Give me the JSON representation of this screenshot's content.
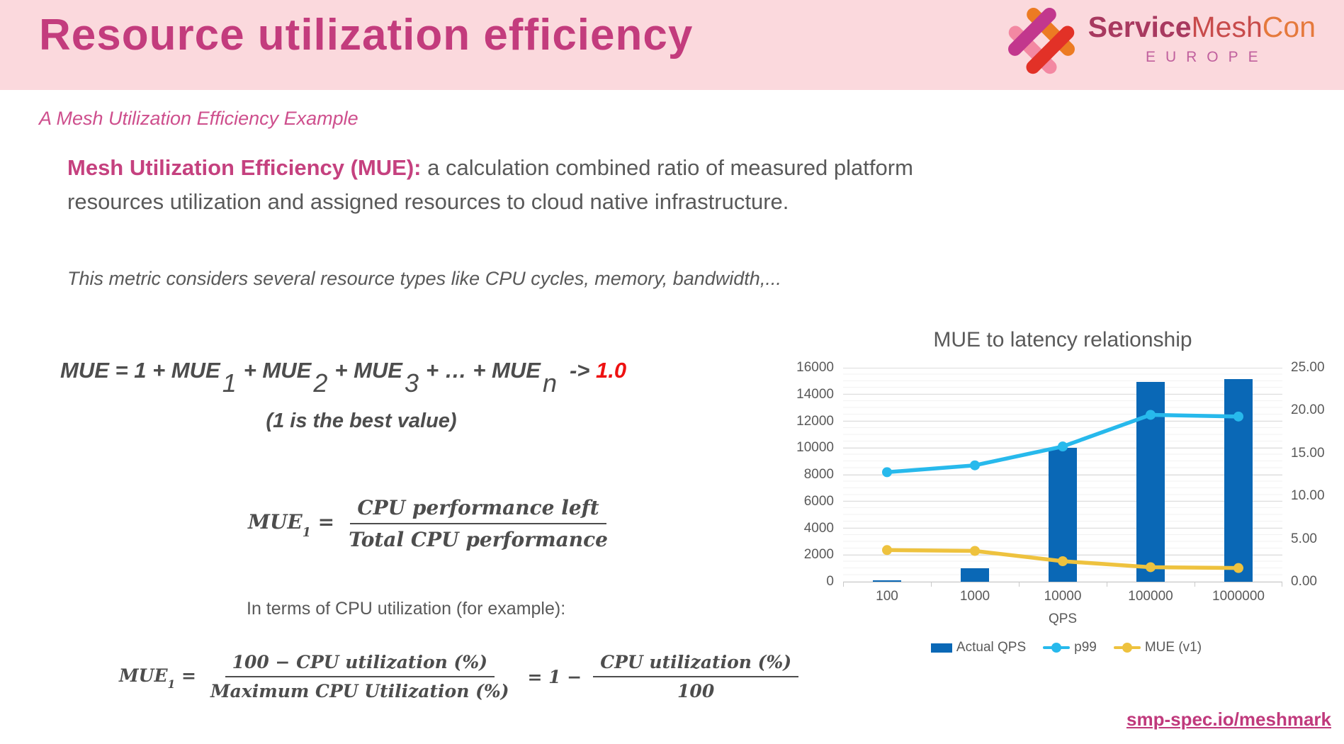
{
  "theme": {
    "header_bg": "#FBD9DD",
    "title_color": "#C33C7D",
    "accent_pink": "#CE4F8D",
    "body_gray": "#595959",
    "red_highlight": "#EE1111",
    "link_color": "#C0397C"
  },
  "header": {
    "title": "Resource utilization efficiency",
    "logo": {
      "brand_service": "Service",
      "brand_mesh": "Mesh",
      "brand_con": "Con",
      "region": "EUROPE"
    }
  },
  "subtitle": "A Mesh Utilization Efficiency Example",
  "intro": {
    "lead": "Mesh Utilization Efficiency (MUE):",
    "rest": " a calculation combined ratio of measured platform resources utilization and assigned resources to cloud native infrastructure."
  },
  "note": "This metric considers several resource types like CPU cycles, memory, bandwidth,...",
  "formula1": {
    "lhs": "MUE",
    "eq": " = 1 + MUE",
    "sub1": "1",
    "plus2": "+ MUE",
    "sub2": "2",
    "plus3": "+ MUE",
    "sub3": "3",
    "plusn": "+ … + MUE",
    "subn": "n",
    "arrow": "-> ",
    "target": "1.0",
    "note": "(1 is the best value)"
  },
  "formula2": {
    "lhs": "MUE",
    "sub": "1",
    "eq": "=",
    "num": "CPU performance left",
    "den": "Total CPU performance"
  },
  "cpu_terms_label": "In terms of CPU utilization (for example):",
  "formula3": {
    "lhs": "MUE",
    "sub": "1",
    "eq": "=",
    "frac1_num": "100 − CPU utilization (%)",
    "frac1_den": "Maximum CPU Utilization (%)",
    "mid": "= 1 −",
    "frac2_num": "CPU utilization (%)",
    "frac2_den": "100"
  },
  "footer_link": "smp-spec.io/meshmark",
  "chart_data": {
    "type": "bar",
    "subtype": "combo-bar-line",
    "title": "MUE to latency relationship",
    "categories": [
      "100",
      "1000",
      "10000",
      "100000",
      "1000000"
    ],
    "xlabel": "QPS",
    "grid": "on",
    "legend_position": "bottom",
    "left_axis": {
      "min": 0,
      "max": 16000,
      "step": 2000,
      "labels": [
        "0",
        "2000",
        "4000",
        "6000",
        "8000",
        "10000",
        "12000",
        "14000",
        "16000"
      ]
    },
    "right_axis": {
      "min": 0,
      "max": 25,
      "step": 5,
      "labels": [
        "0.00",
        "5.00",
        "10.00",
        "15.00",
        "20.00",
        "25.00"
      ]
    },
    "series": [
      {
        "name": "Actual QPS",
        "type": "bar",
        "axis": "left",
        "color": "#0A68B6",
        "values": [
          100,
          1000,
          10000,
          14950,
          15150
        ]
      },
      {
        "name": "p99",
        "type": "line",
        "axis": "right",
        "color": "#27B9EC",
        "values": [
          12.8,
          13.6,
          15.8,
          19.5,
          19.3
        ]
      },
      {
        "name": "MUE (v1)",
        "type": "line",
        "axis": "right",
        "color": "#EEC23E",
        "values": [
          3.7,
          3.6,
          2.4,
          1.7,
          1.6
        ]
      }
    ]
  }
}
